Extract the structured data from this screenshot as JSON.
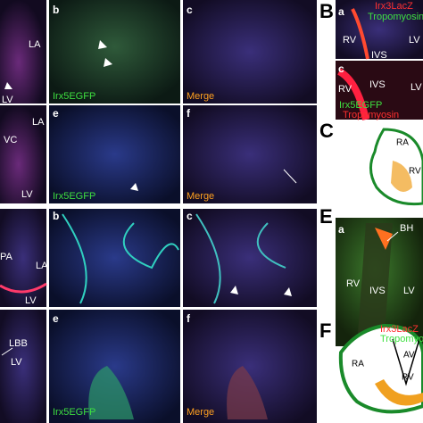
{
  "figure": {
    "panel_A1": {
      "labels": [
        "LA",
        "LV"
      ]
    },
    "panel_A_b": {
      "letter": "b",
      "channel": "Irx5EGFP"
    },
    "panel_A_c": {
      "letter": "c",
      "channel": "Merge"
    },
    "panel_B_a": {
      "section": "B",
      "letter": "a",
      "stains": [
        "Irx3LacZ",
        "Tropomyosin"
      ],
      "labels": [
        "RV",
        "IVS",
        "LV"
      ]
    },
    "panel_B_c": {
      "letter": "c",
      "labels": [
        "RV",
        "IVS",
        "LV"
      ],
      "stains": [
        "Irx5EGFP",
        "Tropomyosin"
      ]
    },
    "panel_C": {
      "section": "C",
      "labels": [
        "RA",
        "RV"
      ]
    },
    "panel_A2": {
      "labels": [
        "LA",
        "VC",
        "LV"
      ]
    },
    "panel_A_e": {
      "letter": "e",
      "channel": "Irx5EGFP"
    },
    "panel_A_f": {
      "letter": "f",
      "channel": "Merge"
    },
    "panel_D1": {
      "labels": [
        "PA",
        "LA",
        "LV"
      ]
    },
    "panel_D_b": {
      "letter": "b"
    },
    "panel_D_c": {
      "letter": "c"
    },
    "panel_E_a": {
      "section": "E",
      "letter": "a",
      "labels": [
        "BH",
        "RV",
        "IVS",
        "LV"
      ],
      "stains": [
        "Irx3LacZ",
        "Tropomyosin"
      ]
    },
    "panel_D2": {
      "labels": [
        "LBB",
        "LV"
      ]
    },
    "panel_D_e": {
      "letter": "e",
      "channel": "Irx5EGFP"
    },
    "panel_D_f": {
      "letter": "f",
      "channel": "Merge"
    },
    "panel_F": {
      "section": "F",
      "labels": [
        "RA",
        "AV",
        "RV"
      ]
    }
  }
}
